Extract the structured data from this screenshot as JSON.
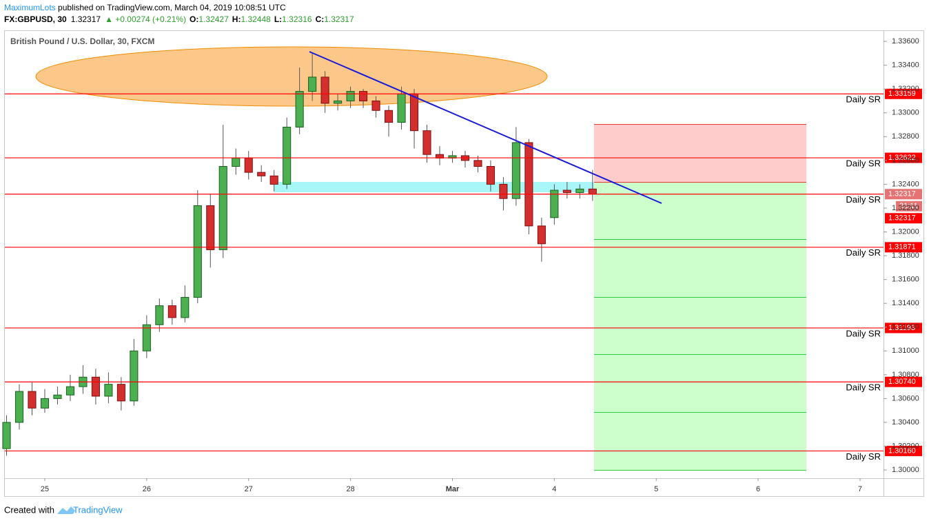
{
  "header": {
    "author": "MaximumLots",
    "published": " published on TradingView.com, March 04, 2019 10:08:51 UTC",
    "symbol": "FX:GBPUSD, 30",
    "last": 1.32317,
    "change": "▲ +0.00274 (+0.21%)",
    "ohlc": [
      {
        "label": "O:",
        "value": 1.32427
      },
      {
        "label": "H:",
        "value": 1.32448
      },
      {
        "label": "L:",
        "value": 1.32316
      },
      {
        "label": "C:",
        "value": 1.32317
      }
    ]
  },
  "footer": {
    "text": "Created with",
    "brand": "TradingView"
  },
  "chart_data": {
    "type": "candlestick",
    "title": "British Pound / U.S. Dollar, 30, FXCM",
    "x": [
      -0.375,
      -0.25,
      -0.125,
      0,
      0.125,
      0.25,
      0.375,
      0.5,
      0.625,
      0.75,
      0.875,
      1,
      1.125,
      1.25,
      1.375,
      1.5,
      1.625,
      1.75,
      1.875,
      2,
      2.125,
      2.25,
      2.375,
      2.5,
      2.625,
      2.75,
      2.875,
      3,
      3.125,
      3.25,
      3.375,
      3.5,
      3.625,
      3.75,
      3.875,
      4,
      4.125,
      4.25,
      4.375,
      4.5,
      4.625,
      4.75,
      4.875,
      5,
      5.125,
      5.25,
      5.375
    ],
    "open": [
      1.3018,
      1.304,
      1.3066,
      1.3052,
      1.306,
      1.3063,
      1.307,
      1.3078,
      1.3062,
      1.3072,
      1.3058,
      1.31,
      1.3122,
      1.3138,
      1.3128,
      1.3145,
      1.3222,
      1.3185,
      1.3255,
      1.3262,
      1.325,
      1.3247,
      1.324,
      1.3288,
      1.3318,
      1.333,
      1.3308,
      1.331,
      1.3318,
      1.331,
      1.3302,
      1.3292,
      1.3316,
      1.3285,
      1.3265,
      1.3262,
      1.3264,
      1.326,
      1.3255,
      1.324,
      1.3228,
      1.3275,
      1.3205,
      1.3212,
      1.3235,
      1.3233,
      1.3236
    ],
    "high": [
      1.3046,
      1.3072,
      1.3074,
      1.3068,
      1.307,
      1.308,
      1.3088,
      1.3085,
      1.3082,
      1.3078,
      1.311,
      1.313,
      1.3144,
      1.3143,
      1.3155,
      1.3235,
      1.3232,
      1.329,
      1.327,
      1.3268,
      1.3256,
      1.3252,
      1.3296,
      1.3338,
      1.335,
      1.3335,
      1.3316,
      1.3322,
      1.332,
      1.3314,
      1.3306,
      1.3322,
      1.332,
      1.329,
      1.3272,
      1.3268,
      1.3268,
      1.3264,
      1.326,
      1.3246,
      1.3288,
      1.3278,
      1.3212,
      1.324,
      1.3242,
      1.324,
      1.3252
    ],
    "low": [
      1.3012,
      1.3034,
      1.3046,
      1.3048,
      1.3055,
      1.3058,
      1.3064,
      1.3055,
      1.3056,
      1.305,
      1.3054,
      1.3094,
      1.3116,
      1.3122,
      1.3124,
      1.314,
      1.317,
      1.3178,
      1.3248,
      1.3244,
      1.3242,
      1.3234,
      1.3236,
      1.3282,
      1.331,
      1.33,
      1.3302,
      1.3304,
      1.3304,
      1.3296,
      1.328,
      1.3286,
      1.327,
      1.3258,
      1.3256,
      1.3258,
      1.3254,
      1.325,
      1.3234,
      1.3218,
      1.3222,
      1.3198,
      1.3175,
      1.3206,
      1.3228,
      1.3228,
      1.3226
    ],
    "close": [
      1.304,
      1.3066,
      1.3052,
      1.306,
      1.3063,
      1.307,
      1.3078,
      1.3062,
      1.3072,
      1.3058,
      1.31,
      1.3122,
      1.3138,
      1.3128,
      1.3145,
      1.3222,
      1.3185,
      1.3255,
      1.3262,
      1.325,
      1.3247,
      1.324,
      1.3288,
      1.3318,
      1.333,
      1.3308,
      1.331,
      1.3318,
      1.331,
      1.3302,
      1.3292,
      1.3316,
      1.3285,
      1.3265,
      1.3262,
      1.3264,
      1.326,
      1.3255,
      1.324,
      1.3228,
      1.3275,
      1.3205,
      1.319,
      1.3235,
      1.3233,
      1.3236,
      1.32317
    ],
    "up_color": "#4caf50",
    "down_color": "#d32f2f",
    "xlim": [
      -0.392,
      8.23
    ],
    "xticks": [
      {
        "value": 0,
        "label": "25"
      },
      {
        "value": 1,
        "label": "26"
      },
      {
        "value": 2,
        "label": "27"
      },
      {
        "value": 3,
        "label": "28"
      },
      {
        "value": 4,
        "label": "Mar"
      },
      {
        "value": 5,
        "label": "4"
      },
      {
        "value": 6,
        "label": "5"
      },
      {
        "value": 7,
        "label": "6"
      },
      {
        "value": 8,
        "label": "7"
      }
    ],
    "ylim": [
      1.29931,
      1.33693
    ],
    "yticks": [
      {
        "value": 1.336,
        "label": "1.33600"
      },
      {
        "value": 1.334,
        "label": "1.33400"
      },
      {
        "value": 1.332,
        "label": "1.33200"
      },
      {
        "value": 1.33,
        "label": "1.33000"
      },
      {
        "value": 1.328,
        "label": "1.32800"
      },
      {
        "value": 1.326,
        "label": "1.32600"
      },
      {
        "value": 1.324,
        "label": "1.32400"
      },
      {
        "value": 1.322,
        "label": "1.32200"
      },
      {
        "value": 1.32,
        "label": "1.32000"
      },
      {
        "value": 1.318,
        "label": "1.31800"
      },
      {
        "value": 1.316,
        "label": "1.31600"
      },
      {
        "value": 1.314,
        "label": "1.31400"
      },
      {
        "value": 1.312,
        "label": "1.31200"
      },
      {
        "value": 1.31,
        "label": "1.31000"
      },
      {
        "value": 1.308,
        "label": "1.30800"
      },
      {
        "value": 1.306,
        "label": "1.30600"
      },
      {
        "value": 1.304,
        "label": "1.30400"
      },
      {
        "value": 1.302,
        "label": "1.30200"
      },
      {
        "value": 1.3,
        "label": "1.30000"
      }
    ],
    "levels": [
      1.33159,
      1.32622,
      1.32317,
      1.31871,
      1.31193,
      {
        "value": 1.3074,
        "label": "1.30740"
      },
      {
        "value": 1.3016,
        "label": "1.30160"
      }
    ],
    "level_label": "Daily SR",
    "level_color": "#ff0000",
    "last_price": 1.32317,
    "countdown": "21:11"
  }
}
